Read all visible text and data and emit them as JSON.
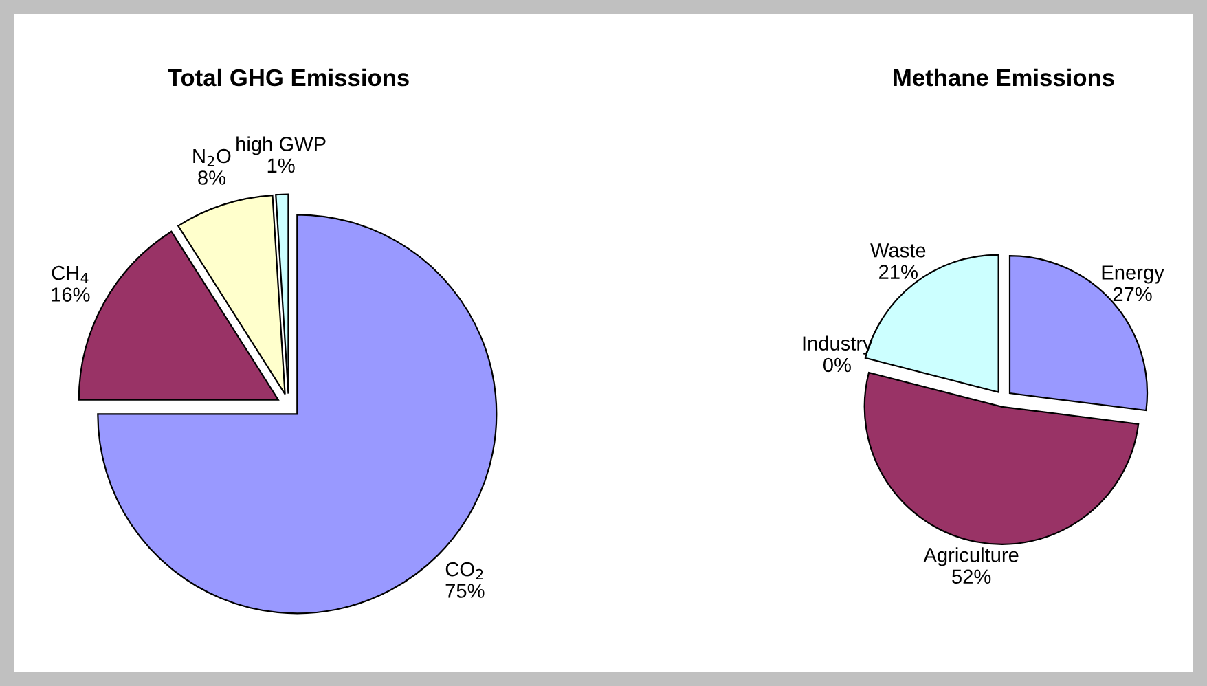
{
  "chart_data": [
    {
      "type": "pie",
      "title": "Total GHG Emissions",
      "categories": [
        "CO$_{2}$",
        "CH$_{4}$",
        "N$_{2}$O",
        "high GWP"
      ],
      "values": [
        75,
        16,
        8,
        1
      ],
      "colors": [
        "#9999ff",
        "#993366",
        "#ffffcc",
        "#ccffff"
      ],
      "value_labels": [
        "75%",
        "16%",
        "8%",
        "1%"
      ]
    },
    {
      "type": "pie",
      "title": "Methane Emissions",
      "categories": [
        "Energy",
        "Agriculture",
        "Industry",
        "Waste"
      ],
      "values": [
        27,
        52,
        0,
        21
      ],
      "colors": [
        "#9999ff",
        "#993366",
        null,
        "#ccffff"
      ],
      "value_labels": [
        "27%",
        "52%",
        "0%",
        "21%"
      ]
    }
  ]
}
